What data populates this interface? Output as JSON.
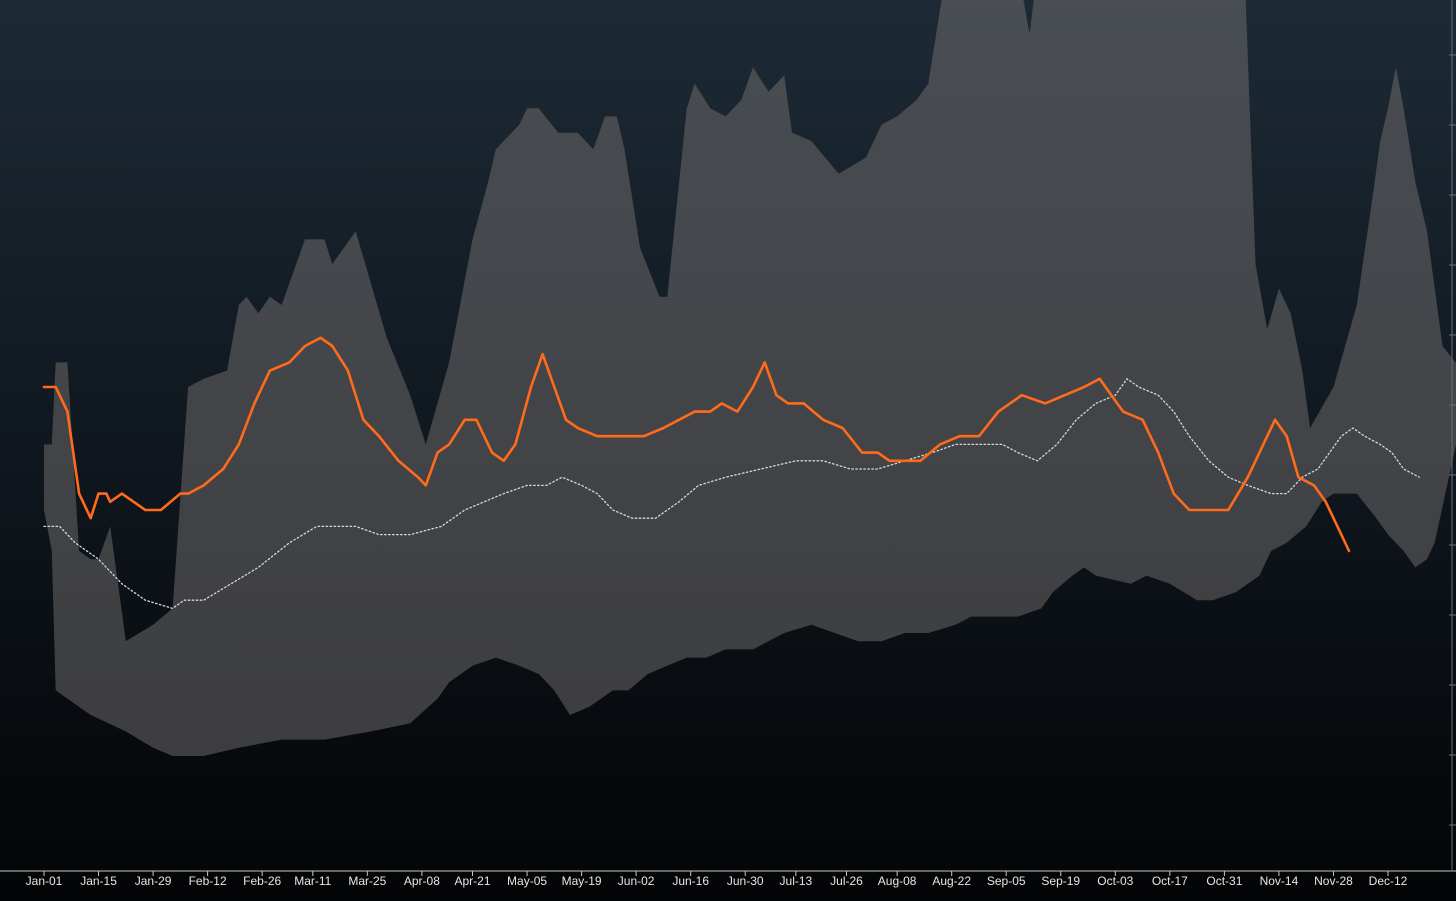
{
  "chart_data": {
    "type": "area",
    "title": "",
    "xlabel": "",
    "ylabel": "",
    "y_axis_shown": false,
    "grid": false,
    "legend": "none",
    "xlim_days": [
      0,
      354
    ],
    "x_tick_labels": [
      "Jan-01",
      "Jan-15",
      "Jan-29",
      "Feb-12",
      "Feb-26",
      "Mar-11",
      "Mar-25",
      "Apr-08",
      "Apr-21",
      "May-05",
      "May-19",
      "Jun-02",
      "Jun-16",
      "Jun-30",
      "Jul-13",
      "Jul-26",
      "Aug-08",
      "Aug-22",
      "Sep-05",
      "Sep-19",
      "Oct-03",
      "Oct-17",
      "Oct-31",
      "Nov-14",
      "Nov-28",
      "Dec-12"
    ],
    "x_tick_days": [
      0,
      14,
      28,
      42,
      56,
      69,
      83,
      97,
      110,
      124,
      138,
      152,
      166,
      180,
      193,
      206,
      219,
      233,
      247,
      261,
      275,
      289,
      303,
      317,
      331,
      345
    ],
    "range_band": {
      "upper": [
        [
          0,
          48
        ],
        [
          2,
          48
        ],
        [
          3,
          58
        ],
        [
          6,
          58
        ],
        [
          9,
          35
        ],
        [
          12,
          34
        ],
        [
          14,
          34
        ],
        [
          17,
          38
        ],
        [
          21,
          24
        ],
        [
          28,
          26
        ],
        [
          33,
          28
        ],
        [
          37,
          55
        ],
        [
          41,
          56
        ],
        [
          47,
          57
        ],
        [
          50,
          65
        ],
        [
          52,
          66
        ],
        [
          55,
          64
        ],
        [
          58,
          66
        ],
        [
          61,
          65
        ],
        [
          67,
          73
        ],
        [
          72,
          73
        ],
        [
          74,
          70
        ],
        [
          80,
          74
        ],
        [
          88,
          61
        ],
        [
          94,
          54
        ],
        [
          98,
          48
        ],
        [
          104,
          58
        ],
        [
          110,
          73
        ],
        [
          114,
          80
        ],
        [
          116,
          84
        ],
        [
          122,
          87
        ],
        [
          124,
          89
        ],
        [
          127,
          89
        ],
        [
          132,
          86
        ],
        [
          137,
          86
        ],
        [
          141,
          84
        ],
        [
          144,
          88
        ],
        [
          147,
          88
        ],
        [
          149,
          84
        ],
        [
          153,
          72
        ],
        [
          158,
          66
        ],
        [
          160,
          66
        ],
        [
          165,
          89
        ],
        [
          167,
          92
        ],
        [
          171,
          89
        ],
        [
          175,
          88
        ],
        [
          179,
          90
        ],
        [
          182,
          94
        ],
        [
          186,
          91
        ],
        [
          190,
          93
        ],
        [
          192,
          86
        ],
        [
          197,
          85
        ],
        [
          204,
          81
        ],
        [
          211,
          83
        ],
        [
          215,
          87
        ],
        [
          219,
          88
        ],
        [
          224,
          90
        ],
        [
          227,
          92
        ],
        [
          231,
          104
        ],
        [
          234,
          113
        ],
        [
          238,
          116
        ],
        [
          241,
          116
        ],
        [
          244,
          112
        ],
        [
          248,
          109
        ],
        [
          250,
          106
        ],
        [
          253,
          98
        ],
        [
          256,
          110
        ],
        [
          258,
          116
        ],
        [
          262,
          120
        ],
        [
          264,
          124
        ],
        [
          270,
          130
        ],
        [
          272,
          136
        ],
        [
          275,
          140
        ],
        [
          278,
          150
        ],
        [
          282,
          159
        ],
        [
          285,
          167
        ],
        [
          289,
          165
        ],
        [
          292,
          160
        ],
        [
          295,
          148
        ],
        [
          298,
          141
        ],
        [
          303,
          126
        ],
        [
          308,
          108
        ],
        [
          311,
          70
        ],
        [
          314,
          62
        ],
        [
          317,
          67
        ],
        [
          320,
          64
        ],
        [
          323,
          57
        ],
        [
          325,
          50
        ],
        [
          331,
          55
        ],
        [
          337,
          65
        ],
        [
          341,
          78
        ],
        [
          343,
          85
        ],
        [
          345,
          89
        ],
        [
          347,
          94
        ],
        [
          349,
          89
        ],
        [
          352,
          80
        ],
        [
          355,
          74
        ],
        [
          359,
          60
        ],
        [
          364,
          57
        ],
        [
          367,
          58
        ]
      ],
      "lower": [
        [
          0,
          40
        ],
        [
          2,
          35
        ],
        [
          3,
          18
        ],
        [
          6,
          17
        ],
        [
          12,
          15
        ],
        [
          21,
          13
        ],
        [
          28,
          11
        ],
        [
          33,
          10
        ],
        [
          41,
          10
        ],
        [
          50,
          11
        ],
        [
          61,
          12
        ],
        [
          72,
          12
        ],
        [
          84,
          13
        ],
        [
          94,
          14
        ],
        [
          101,
          17
        ],
        [
          104,
          19
        ],
        [
          110,
          21
        ],
        [
          116,
          22
        ],
        [
          122,
          21
        ],
        [
          127,
          20
        ],
        [
          131,
          18
        ],
        [
          135,
          15
        ],
        [
          140,
          16
        ],
        [
          146,
          18
        ],
        [
          150,
          18
        ],
        [
          155,
          20
        ],
        [
          160,
          21
        ],
        [
          165,
          22
        ],
        [
          170,
          22
        ],
        [
          175,
          23
        ],
        [
          182,
          23
        ],
        [
          190,
          25
        ],
        [
          197,
          26
        ],
        [
          203,
          25
        ],
        [
          209,
          24
        ],
        [
          215,
          24
        ],
        [
          221,
          25
        ],
        [
          227,
          25
        ],
        [
          234,
          26
        ],
        [
          238,
          27
        ],
        [
          243,
          27
        ],
        [
          250,
          27
        ],
        [
          256,
          28
        ],
        [
          259,
          30
        ],
        [
          264,
          32
        ],
        [
          267,
          33
        ],
        [
          270,
          32
        ],
        [
          279,
          31
        ],
        [
          283,
          32
        ],
        [
          289,
          31
        ],
        [
          296,
          29
        ],
        [
          300,
          29
        ],
        [
          306,
          30
        ],
        [
          312,
          32
        ],
        [
          315,
          35
        ],
        [
          319,
          36
        ],
        [
          324,
          38
        ],
        [
          328,
          41
        ],
        [
          331,
          42
        ],
        [
          337,
          42
        ],
        [
          342,
          39
        ],
        [
          345,
          37
        ],
        [
          349,
          35
        ],
        [
          352,
          33
        ],
        [
          355,
          34
        ],
        [
          357,
          36
        ]
      ]
    },
    "series": [
      {
        "name": "",
        "color": "#ff6b1a",
        "style": "solid",
        "points": [
          [
            0,
            55
          ],
          [
            3,
            55
          ],
          [
            6,
            52
          ],
          [
            9,
            42
          ],
          [
            12,
            39
          ],
          [
            14,
            42
          ],
          [
            16,
            42
          ],
          [
            17,
            41
          ],
          [
            20,
            42
          ],
          [
            23,
            41
          ],
          [
            26,
            40
          ],
          [
            30,
            40
          ],
          [
            35,
            42
          ],
          [
            37,
            42
          ],
          [
            41,
            43
          ],
          [
            46,
            45
          ],
          [
            50,
            48
          ],
          [
            54,
            53
          ],
          [
            58,
            57
          ],
          [
            63,
            58
          ],
          [
            67,
            60
          ],
          [
            71,
            61
          ],
          [
            74,
            60
          ],
          [
            78,
            57
          ],
          [
            82,
            51
          ],
          [
            86,
            49
          ],
          [
            91,
            46
          ],
          [
            96,
            44
          ],
          [
            98,
            43
          ],
          [
            101,
            47
          ],
          [
            104,
            48
          ],
          [
            108,
            51
          ],
          [
            111,
            51
          ],
          [
            115,
            47
          ],
          [
            118,
            46
          ],
          [
            121,
            48
          ],
          [
            125,
            55
          ],
          [
            128,
            59
          ],
          [
            131,
            55
          ],
          [
            134,
            51
          ],
          [
            137,
            50
          ],
          [
            142,
            49
          ],
          [
            147,
            49
          ],
          [
            154,
            49
          ],
          [
            159,
            50
          ],
          [
            163,
            51
          ],
          [
            167,
            52
          ],
          [
            171,
            52
          ],
          [
            174,
            53
          ],
          [
            178,
            52
          ],
          [
            182,
            55
          ],
          [
            185,
            58
          ],
          [
            188,
            54
          ],
          [
            191,
            53
          ],
          [
            195,
            53
          ],
          [
            200,
            51
          ],
          [
            205,
            50
          ],
          [
            210,
            47
          ],
          [
            214,
            47
          ],
          [
            217,
            46
          ],
          [
            220,
            46
          ],
          [
            225,
            46
          ],
          [
            230,
            48
          ],
          [
            235,
            49
          ],
          [
            240,
            49
          ],
          [
            245,
            52
          ],
          [
            251,
            54
          ],
          [
            257,
            53
          ],
          [
            262,
            54
          ],
          [
            267,
            55
          ],
          [
            271,
            56
          ],
          [
            274,
            54
          ],
          [
            277,
            52
          ],
          [
            282,
            51
          ],
          [
            286,
            47
          ],
          [
            290,
            42
          ],
          [
            294,
            40
          ],
          [
            298,
            40
          ],
          [
            304,
            40
          ],
          [
            309,
            44
          ],
          [
            313,
            48
          ],
          [
            316,
            51
          ],
          [
            319,
            49
          ],
          [
            322,
            44
          ],
          [
            326,
            43
          ],
          [
            329,
            41
          ],
          [
            333,
            37
          ],
          [
            335,
            35
          ]
        ]
      },
      {
        "name": "",
        "color": "#d8d8d8",
        "style": "dotted",
        "points": [
          [
            0,
            38
          ],
          [
            4,
            38
          ],
          [
            8,
            36
          ],
          [
            14,
            34
          ],
          [
            20,
            31
          ],
          [
            26,
            29
          ],
          [
            33,
            28
          ],
          [
            36,
            29
          ],
          [
            41,
            29
          ],
          [
            48,
            31
          ],
          [
            55,
            33
          ],
          [
            63,
            36
          ],
          [
            70,
            38
          ],
          [
            75,
            38
          ],
          [
            80,
            38
          ],
          [
            86,
            37
          ],
          [
            94,
            37
          ],
          [
            102,
            38
          ],
          [
            108,
            40
          ],
          [
            113,
            41
          ],
          [
            118,
            42
          ],
          [
            124,
            43
          ],
          [
            129,
            43
          ],
          [
            133,
            44
          ],
          [
            138,
            43
          ],
          [
            142,
            42
          ],
          [
            146,
            40
          ],
          [
            151,
            39
          ],
          [
            157,
            39
          ],
          [
            163,
            41
          ],
          [
            168,
            43
          ],
          [
            175,
            44
          ],
          [
            184,
            45
          ],
          [
            193,
            46
          ],
          [
            200,
            46
          ],
          [
            207,
            45
          ],
          [
            214,
            45
          ],
          [
            221,
            46
          ],
          [
            228,
            47
          ],
          [
            234,
            48
          ],
          [
            240,
            48
          ],
          [
            246,
            48
          ],
          [
            250,
            47
          ],
          [
            255,
            46
          ],
          [
            260,
            48
          ],
          [
            265,
            51
          ],
          [
            270,
            53
          ],
          [
            275,
            54
          ],
          [
            278,
            56
          ],
          [
            281,
            55
          ],
          [
            286,
            54
          ],
          [
            290,
            52
          ],
          [
            294,
            49
          ],
          [
            299,
            46
          ],
          [
            304,
            44
          ],
          [
            309,
            43
          ],
          [
            315,
            42
          ],
          [
            319,
            42
          ],
          [
            323,
            44
          ],
          [
            327,
            45
          ],
          [
            330,
            47
          ],
          [
            333,
            49
          ],
          [
            336,
            50
          ],
          [
            339,
            49
          ],
          [
            343,
            48
          ],
          [
            346,
            47
          ],
          [
            349,
            45
          ],
          [
            353,
            44
          ]
        ]
      }
    ]
  }
}
